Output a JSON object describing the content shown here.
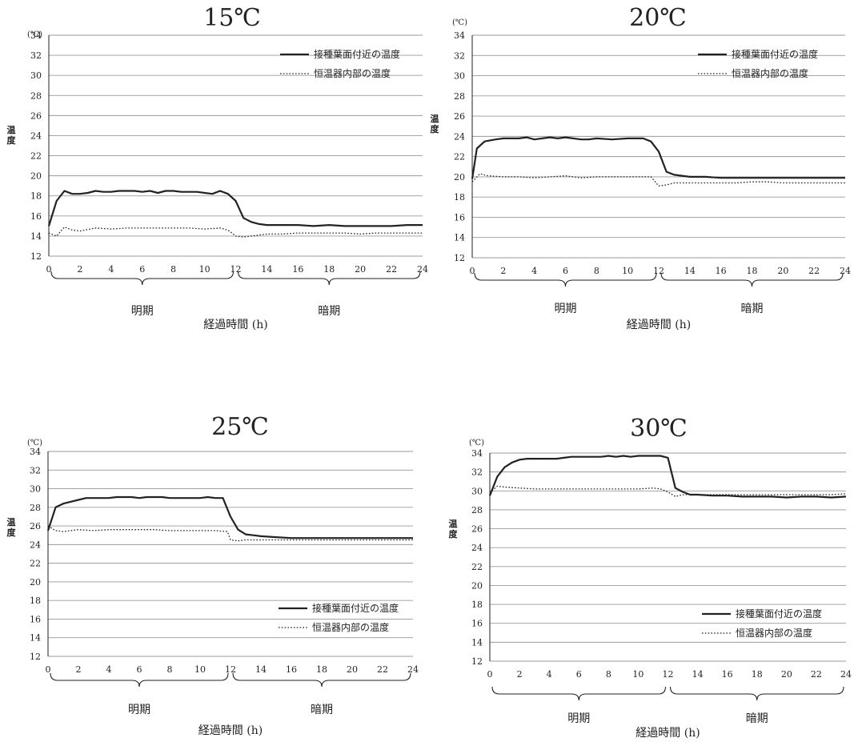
{
  "chart_data": [
    {
      "type": "line",
      "title": "15℃",
      "unit_label": "(℃)",
      "ylabel": "温度",
      "xlabel": "経過時間 (h)",
      "xlim": [
        0,
        24
      ],
      "ylim": [
        12,
        34
      ],
      "xticks": [
        0,
        2,
        4,
        6,
        8,
        10,
        12,
        14,
        16,
        18,
        20,
        22,
        24
      ],
      "yticks": [
        12,
        14,
        16,
        18,
        20,
        22,
        24,
        26,
        28,
        30,
        32,
        34
      ],
      "grid": true,
      "legend": "top-right",
      "periods": [
        {
          "label": "明期",
          "start": 0,
          "end": 12
        },
        {
          "label": "暗期",
          "start": 12,
          "end": 24
        }
      ],
      "series": [
        {
          "name": "接種葉面付近の温度",
          "style": "solid",
          "x": [
            0,
            0.5,
            1,
            1.5,
            2,
            2.5,
            3,
            3.5,
            4,
            4.5,
            5,
            5.5,
            6,
            6.5,
            7,
            7.5,
            8,
            8.5,
            9,
            9.5,
            10,
            10.5,
            11,
            11.5,
            12,
            12.5,
            13,
            13.5,
            14,
            15,
            16,
            17,
            18,
            19,
            20,
            21,
            22,
            23,
            24
          ],
          "y": [
            15.0,
            17.5,
            18.5,
            18.2,
            18.2,
            18.3,
            18.5,
            18.4,
            18.4,
            18.5,
            18.5,
            18.5,
            18.4,
            18.5,
            18.3,
            18.5,
            18.5,
            18.4,
            18.4,
            18.4,
            18.3,
            18.2,
            18.5,
            18.2,
            17.5,
            15.8,
            15.4,
            15.2,
            15.1,
            15.1,
            15.1,
            15.0,
            15.1,
            15.0,
            15.0,
            15.0,
            15.0,
            15.1,
            15.1
          ]
        },
        {
          "name": "恒温器内部の温度",
          "style": "dotted",
          "x": [
            0,
            0.5,
            1,
            1.5,
            2,
            3,
            4,
            5,
            6,
            7,
            8,
            9,
            10,
            11,
            11.5,
            12,
            12.5,
            13,
            14,
            15,
            16,
            17,
            18,
            19,
            20,
            21,
            22,
            23,
            24
          ],
          "y": [
            14.3,
            14.0,
            14.9,
            14.6,
            14.5,
            14.8,
            14.7,
            14.8,
            14.8,
            14.8,
            14.8,
            14.8,
            14.7,
            14.8,
            14.6,
            14.0,
            13.9,
            14.0,
            14.2,
            14.2,
            14.3,
            14.3,
            14.3,
            14.3,
            14.2,
            14.3,
            14.3,
            14.3,
            14.3
          ]
        }
      ]
    },
    {
      "type": "line",
      "title": "20℃",
      "unit_label": "(℃)",
      "ylabel": "温度",
      "xlabel": "経過時間 (h)",
      "xlim": [
        0,
        24
      ],
      "ylim": [
        12,
        34
      ],
      "xticks": [
        0,
        2,
        4,
        6,
        8,
        10,
        12,
        14,
        16,
        18,
        20,
        22,
        24
      ],
      "yticks": [
        12,
        14,
        16,
        18,
        20,
        22,
        24,
        26,
        28,
        30,
        32,
        34
      ],
      "grid": true,
      "legend": "top-right",
      "periods": [
        {
          "label": "明期",
          "start": 0,
          "end": 12
        },
        {
          "label": "暗期",
          "start": 12,
          "end": 24
        }
      ],
      "series": [
        {
          "name": "接種葉面付近の温度",
          "style": "solid",
          "x": [
            0,
            0.3,
            0.8,
            1.5,
            2,
            3,
            3.5,
            4,
            4.5,
            5,
            5.5,
            6,
            6.5,
            7,
            7.5,
            8,
            9,
            10,
            11,
            11.5,
            12,
            12.5,
            13,
            13.5,
            14,
            15,
            16,
            17,
            18,
            19,
            20,
            21,
            22,
            23,
            24
          ],
          "y": [
            19.8,
            22.8,
            23.5,
            23.7,
            23.8,
            23.8,
            23.9,
            23.7,
            23.8,
            23.9,
            23.8,
            23.9,
            23.8,
            23.7,
            23.7,
            23.8,
            23.7,
            23.8,
            23.8,
            23.5,
            22.5,
            20.5,
            20.2,
            20.1,
            20.0,
            20.0,
            19.9,
            19.9,
            19.9,
            19.9,
            19.9,
            19.9,
            19.9,
            19.9,
            19.9
          ]
        },
        {
          "name": "恒温器内部の温度",
          "style": "dotted",
          "x": [
            0,
            0.5,
            1,
            2,
            3,
            4,
            5,
            6,
            7,
            8,
            9,
            10,
            11,
            11.5,
            12,
            12.5,
            13,
            14,
            15,
            16,
            17,
            18,
            19,
            20,
            21,
            22,
            23,
            24
          ],
          "y": [
            19.5,
            20.3,
            20.1,
            20.0,
            20.0,
            19.9,
            20.0,
            20.1,
            19.9,
            20.0,
            20.0,
            20.0,
            20.0,
            20.0,
            19.1,
            19.2,
            19.4,
            19.4,
            19.4,
            19.4,
            19.4,
            19.5,
            19.5,
            19.4,
            19.4,
            19.4,
            19.4,
            19.4
          ]
        }
      ]
    },
    {
      "type": "line",
      "title": "25℃",
      "unit_label": "(℃)",
      "ylabel": "温度",
      "xlabel": "経過時間 (h)",
      "xlim": [
        0,
        24
      ],
      "ylim": [
        12,
        34
      ],
      "xticks": [
        0,
        2,
        4,
        6,
        8,
        10,
        12,
        14,
        16,
        18,
        20,
        22,
        24
      ],
      "yticks": [
        12,
        14,
        16,
        18,
        20,
        22,
        24,
        26,
        28,
        30,
        32,
        34
      ],
      "grid": true,
      "legend": "bottom-right",
      "periods": [
        {
          "label": "明期",
          "start": 0,
          "end": 12
        },
        {
          "label": "暗期",
          "start": 12,
          "end": 24
        }
      ],
      "series": [
        {
          "name": "接種葉面付近の温度",
          "style": "solid",
          "x": [
            0,
            0.5,
            1,
            1.5,
            2,
            2.5,
            3,
            3.5,
            4,
            4.5,
            5,
            5.5,
            6,
            6.5,
            7,
            7.5,
            8,
            9,
            10,
            10.5,
            11,
            11.5,
            12,
            12.5,
            13,
            13.5,
            14,
            15,
            16,
            17,
            18,
            19,
            20,
            21,
            22,
            23,
            24
          ],
          "y": [
            25.5,
            28.0,
            28.4,
            28.6,
            28.8,
            29.0,
            29.0,
            29.0,
            29.0,
            29.1,
            29.1,
            29.1,
            29.0,
            29.1,
            29.1,
            29.1,
            29.0,
            29.0,
            29.0,
            29.1,
            29.0,
            29.0,
            27.0,
            25.6,
            25.1,
            25.0,
            24.9,
            24.8,
            24.7,
            24.7,
            24.7,
            24.7,
            24.7,
            24.7,
            24.7,
            24.7,
            24.7
          ]
        },
        {
          "name": "恒温器内部の温度",
          "style": "dotted",
          "x": [
            0,
            0.5,
            1,
            2,
            3,
            4,
            5,
            6,
            7,
            8,
            9,
            10,
            11,
            11.8,
            12,
            12.5,
            13,
            14,
            15,
            16,
            17,
            18,
            19,
            20,
            21,
            22,
            23,
            24
          ],
          "y": [
            26.0,
            25.5,
            25.4,
            25.6,
            25.5,
            25.6,
            25.6,
            25.6,
            25.6,
            25.5,
            25.5,
            25.5,
            25.5,
            25.4,
            24.5,
            24.4,
            24.5,
            24.5,
            24.5,
            24.5,
            24.5,
            24.5,
            24.5,
            24.5,
            24.5,
            24.5,
            24.5,
            24.5
          ]
        }
      ]
    },
    {
      "type": "line",
      "title": "30℃",
      "unit_label": "(℃)",
      "ylabel": "温度",
      "xlabel": "経過時間 (h)",
      "xlim": [
        0,
        24
      ],
      "ylim": [
        12,
        34
      ],
      "xticks": [
        0,
        2,
        4,
        6,
        8,
        10,
        12,
        14,
        16,
        18,
        20,
        22,
        24
      ],
      "yticks": [
        12,
        14,
        16,
        18,
        20,
        22,
        24,
        26,
        28,
        30,
        32,
        34
      ],
      "grid": true,
      "legend": "bottom-right",
      "periods": [
        {
          "label": "明期",
          "start": 0,
          "end": 12
        },
        {
          "label": "暗期",
          "start": 12,
          "end": 24
        }
      ],
      "series": [
        {
          "name": "接種葉面付近の温度",
          "style": "solid",
          "x": [
            0,
            0.5,
            1,
            1.5,
            2,
            2.5,
            3,
            3.5,
            4,
            4.5,
            5,
            5.5,
            6,
            6.5,
            7,
            7.5,
            8,
            8.5,
            9,
            9.5,
            10,
            10.5,
            11,
            11.5,
            12,
            12.5,
            13,
            13.5,
            14,
            15,
            16,
            17,
            18,
            19,
            20,
            21,
            22,
            23,
            24
          ],
          "y": [
            29.5,
            31.5,
            32.5,
            33.0,
            33.3,
            33.4,
            33.4,
            33.4,
            33.4,
            33.4,
            33.5,
            33.6,
            33.6,
            33.6,
            33.6,
            33.6,
            33.7,
            33.6,
            33.7,
            33.6,
            33.7,
            33.7,
            33.7,
            33.7,
            33.5,
            30.3,
            29.9,
            29.6,
            29.6,
            29.5,
            29.5,
            29.4,
            29.4,
            29.4,
            29.3,
            29.4,
            29.4,
            29.3,
            29.4
          ]
        },
        {
          "name": "恒温器内部の温度",
          "style": "dotted",
          "x": [
            0,
            0.5,
            1,
            2,
            3,
            4,
            5,
            6,
            7,
            8,
            9,
            10,
            11,
            11.5,
            12,
            12.5,
            13,
            14,
            15,
            16,
            17,
            18,
            19,
            20,
            21,
            22,
            23,
            24
          ],
          "y": [
            29.8,
            30.5,
            30.4,
            30.3,
            30.2,
            30.2,
            30.2,
            30.2,
            30.2,
            30.2,
            30.2,
            30.2,
            30.3,
            30.2,
            29.9,
            29.4,
            29.6,
            29.6,
            29.6,
            29.6,
            29.6,
            29.6,
            29.6,
            29.6,
            29.6,
            29.6,
            29.6,
            29.7
          ]
        }
      ]
    }
  ]
}
